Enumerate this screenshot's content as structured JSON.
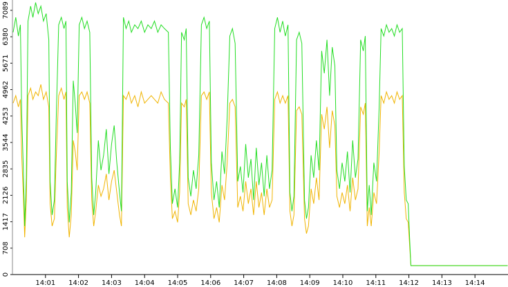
{
  "chart_data": {
    "type": "line",
    "x": [
      0.02,
      0.1,
      0.18,
      0.24,
      0.28,
      0.33,
      0.37,
      0.42,
      0.47,
      0.55,
      0.62,
      0.7,
      0.78,
      0.86,
      0.94,
      1.02,
      1.1,
      1.14,
      1.2,
      1.27,
      1.32,
      1.4,
      1.48,
      1.56,
      1.62,
      1.66,
      1.72,
      1.78,
      1.84,
      1.9,
      1.96,
      2.02,
      2.1,
      2.18,
      2.26,
      2.34,
      2.4,
      2.46,
      2.52,
      2.6,
      2.68,
      2.76,
      2.84,
      2.92,
      3.0,
      3.08,
      3.16,
      3.24,
      3.3,
      3.36,
      3.44,
      3.52,
      3.6,
      3.7,
      3.8,
      3.9,
      4.0,
      4.1,
      4.2,
      4.3,
      4.4,
      4.5,
      4.6,
      4.72,
      4.78,
      4.84,
      4.92,
      5.0,
      5.06,
      5.12,
      5.2,
      5.26,
      5.32,
      5.4,
      5.48,
      5.56,
      5.64,
      5.72,
      5.8,
      5.88,
      5.96,
      6.02,
      6.1,
      6.18,
      6.26,
      6.34,
      6.42,
      6.5,
      6.58,
      6.66,
      6.74,
      6.82,
      6.9,
      6.98,
      7.06,
      7.14,
      7.22,
      7.3,
      7.38,
      7.46,
      7.54,
      7.62,
      7.7,
      7.78,
      7.86,
      7.94,
      8.02,
      8.1,
      8.18,
      8.26,
      8.34,
      8.4,
      8.46,
      8.52,
      8.6,
      8.68,
      8.76,
      8.84,
      8.9,
      8.96,
      9.04,
      9.12,
      9.2,
      9.28,
      9.36,
      9.44,
      9.52,
      9.6,
      9.68,
      9.76,
      9.82,
      9.9,
      9.98,
      10.06,
      10.14,
      10.22,
      10.3,
      10.38,
      10.46,
      10.54,
      10.62,
      10.68,
      10.74,
      10.8,
      10.86,
      10.94,
      11.02,
      11.1,
      11.16,
      11.24,
      11.32,
      11.4,
      11.48,
      11.56,
      11.64,
      11.72,
      11.8,
      11.86,
      11.92,
      11.98,
      12.02,
      12.06,
      14.99
    ],
    "series": [
      {
        "color": "#f0b400",
        "values": [
          4600,
          4800,
          4500,
          4700,
          3200,
          2100,
          1000,
          2000,
          4800,
          5000,
          4700,
          4900,
          4800,
          5100,
          4700,
          4900,
          4500,
          1900,
          1300,
          1500,
          3000,
          4800,
          5000,
          4700,
          4900,
          1800,
          1000,
          1600,
          3600,
          3300,
          2800,
          4800,
          4900,
          4700,
          4900,
          4600,
          2000,
          1300,
          1700,
          2400,
          2100,
          2300,
          2700,
          2000,
          2500,
          2800,
          2200,
          1600,
          1300,
          4800,
          4700,
          4900,
          4600,
          4800,
          4500,
          4900,
          4600,
          4700,
          4800,
          4700,
          4600,
          4900,
          4700,
          4600,
          2600,
          1500,
          1700,
          1400,
          2200,
          4600,
          4500,
          4700,
          1900,
          1600,
          2000,
          1700,
          2300,
          4800,
          4900,
          4700,
          4900,
          2200,
          1500,
          1800,
          1400,
          2400,
          2000,
          3000,
          4600,
          4700,
          4500,
          1800,
          2100,
          1700,
          2500,
          1900,
          2300,
          1600,
          2500,
          1800,
          2200,
          1600,
          2300,
          1800,
          2000,
          4700,
          4900,
          4600,
          4800,
          4600,
          4800,
          1700,
          1300,
          1600,
          4400,
          4500,
          4300,
          1500,
          1100,
          1300,
          2300,
          1900,
          2600,
          2000,
          4300,
          3900,
          4500,
          3400,
          4400,
          4000,
          2100,
          1800,
          2200,
          1900,
          2400,
          1700,
          2600,
          2000,
          2300,
          4500,
          4300,
          4600,
          1300,
          1800,
          1300,
          2200,
          1900,
          3300,
          4800,
          4600,
          4900,
          4700,
          4800,
          4600,
          4900,
          4700,
          4800,
          2200,
          1500,
          1400,
          800,
          240,
          240
        ]
      },
      {
        "color": "#22dd22",
        "values": [
          6500,
          6900,
          6400,
          6700,
          4300,
          2800,
          1300,
          2600,
          6800,
          7200,
          6900,
          7300,
          7000,
          7200,
          6800,
          7000,
          6300,
          2500,
          1600,
          2000,
          4000,
          6700,
          6900,
          6600,
          6800,
          2500,
          1400,
          2200,
          5200,
          4600,
          3800,
          6700,
          6900,
          6600,
          6800,
          6500,
          2600,
          1600,
          2200,
          3600,
          2800,
          3200,
          3900,
          2700,
          3500,
          4000,
          3000,
          2200,
          1700,
          6900,
          6600,
          6800,
          6500,
          6700,
          6600,
          6800,
          6500,
          6700,
          6600,
          6800,
          6500,
          6700,
          6600,
          6500,
          3400,
          1900,
          2300,
          1800,
          3000,
          6500,
          6300,
          6600,
          2600,
          2100,
          2800,
          2300,
          3200,
          6700,
          6900,
          6600,
          6800,
          3000,
          2000,
          2500,
          1800,
          3300,
          2700,
          4200,
          6400,
          6600,
          6200,
          2500,
          2900,
          2200,
          3500,
          2600,
          3100,
          2000,
          3400,
          2400,
          3000,
          2100,
          3200,
          2300,
          2800,
          6600,
          6900,
          6500,
          6800,
          6400,
          6700,
          2200,
          1700,
          2100,
          6300,
          6500,
          6200,
          2000,
          1500,
          1800,
          3200,
          2600,
          3600,
          2800,
          6000,
          5400,
          6300,
          4800,
          6100,
          5600,
          2800,
          2300,
          3000,
          2500,
          3300,
          2200,
          3600,
          2600,
          3100,
          6300,
          6000,
          6400,
          1700,
          2400,
          1600,
          3000,
          2500,
          4500,
          6600,
          6400,
          6700,
          6500,
          6600,
          6400,
          6700,
          6500,
          6600,
          2900,
          2000,
          1900,
          1000,
          240,
          240
        ]
      }
    ],
    "xlim": [
      0,
      15
    ],
    "ylim": [
      0,
      7366
    ],
    "xticks": [
      {
        "value": 1,
        "label": "14:01"
      },
      {
        "value": 2,
        "label": "14:02"
      },
      {
        "value": 3,
        "label": "14:03"
      },
      {
        "value": 4,
        "label": "14:04"
      },
      {
        "value": 5,
        "label": "14:05"
      },
      {
        "value": 6,
        "label": "14:06"
      },
      {
        "value": 7,
        "label": "14:07"
      },
      {
        "value": 8,
        "label": "14:08"
      },
      {
        "value": 9,
        "label": "14:09"
      },
      {
        "value": 10,
        "label": "14:10"
      },
      {
        "value": 11,
        "label": "14:11"
      },
      {
        "value": 12,
        "label": "14:12"
      },
      {
        "value": 13,
        "label": "14:13"
      },
      {
        "value": 14,
        "label": "14:14"
      }
    ],
    "yticks": [
      0,
      708,
      1417,
      2126,
      2835,
      3544,
      4253,
      4962,
      5671,
      6380,
      7089
    ]
  }
}
